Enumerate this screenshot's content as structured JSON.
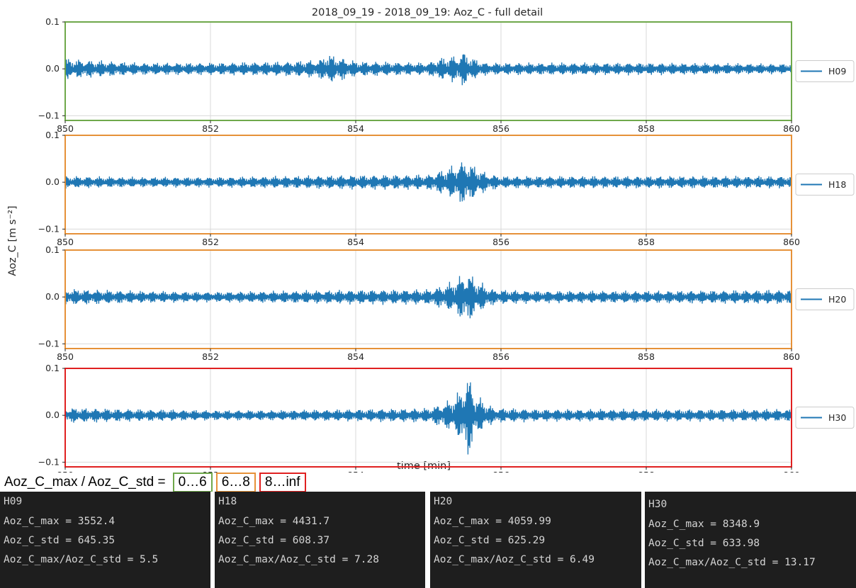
{
  "chart_data": {
    "type": "line",
    "title": "2018_09_19 - 2018_09_19: Aoz_C - full detail",
    "xlabel": "time [min]",
    "ylabel": "Aoz_C [m s⁻²]",
    "xlim": [
      850,
      860
    ],
    "ylim": [
      -0.11,
      0.1
    ],
    "x_ticks": [
      850,
      852,
      854,
      856,
      858,
      860
    ],
    "x_tick_labels": [
      "850",
      "852",
      "854",
      "856",
      "858",
      "860"
    ],
    "y_ticks": [
      -0.1,
      0.0,
      0.1
    ],
    "y_tick_labels": [
      "−0.1",
      "0.0",
      "0.1"
    ],
    "grid": true,
    "legend_placement": "right",
    "line_color": "#1f77b4",
    "panels": [
      {
        "series": [
          {
            "name": "H09",
            "envelope_x": [
              850,
              851,
              852,
              853,
              853.5,
              853.6,
              854,
              855,
              855.1,
              855.4,
              855.5,
              855.6,
              855.8,
              857,
              858,
              860
            ],
            "envelope_y": [
              0.02,
              0.012,
              0.012,
              0.014,
              0.018,
              0.03,
              0.015,
              0.012,
              0.02,
              0.027,
              0.035,
              0.022,
              0.012,
              0.012,
              0.012,
              0.01
            ]
          }
        ],
        "frame_color": "#6fa84b"
      },
      {
        "series": [
          {
            "name": "H18",
            "envelope_x": [
              850,
              851,
              852,
              853,
              854,
              855,
              855.3,
              855.5,
              855.6,
              855.8,
              856,
              857,
              858,
              860
            ],
            "envelope_y": [
              0.012,
              0.01,
              0.01,
              0.012,
              0.014,
              0.015,
              0.03,
              0.045,
              0.035,
              0.018,
              0.012,
              0.012,
              0.012,
              0.012
            ]
          }
        ],
        "frame_color": "#e69138"
      },
      {
        "series": [
          {
            "name": "H20",
            "envelope_x": [
              850,
              851,
              852,
              853,
              854,
              855,
              855.3,
              855.5,
              855.55,
              855.7,
              855.9,
              856.5,
              858,
              860
            ],
            "envelope_y": [
              0.016,
              0.012,
              0.01,
              0.012,
              0.014,
              0.015,
              0.028,
              0.048,
              0.05,
              0.03,
              0.015,
              0.012,
              0.012,
              0.014
            ]
          }
        ],
        "frame_color": "#e69138"
      },
      {
        "series": [
          {
            "name": "H30",
            "envelope_x": [
              850,
              851,
              852,
              853,
              854,
              855,
              855.3,
              855.45,
              855.55,
              855.65,
              855.9,
              856.5,
              858,
              860
            ],
            "envelope_y": [
              0.015,
              0.012,
              0.01,
              0.01,
              0.012,
              0.014,
              0.03,
              0.05,
              0.085,
              0.04,
              0.015,
              0.012,
              0.012,
              0.012
            ]
          }
        ],
        "frame_color": "#e02020"
      }
    ]
  },
  "legend_caption": {
    "label": "Aoz_C_max / Aoz_C_std =",
    "ranges": [
      {
        "text": "0…6",
        "color": "#6fa84b"
      },
      {
        "text": "6…8",
        "color": "#e69138"
      },
      {
        "text": "8…inf",
        "color": "#e02020"
      }
    ]
  },
  "stats": [
    {
      "name": "H09",
      "max": "Aoz_C_max = 3552.4",
      "std": "Aoz_C_std = 645.35",
      "ratio": "Aoz_C_max/Aoz_C_std = 5.5"
    },
    {
      "name": "H18",
      "max": "Aoz_C_max = 4431.7",
      "std": "Aoz_C_std = 608.37",
      "ratio": "Aoz_C_max/Aoz_C_std = 7.28"
    },
    {
      "name": "H20",
      "max": "Aoz_C_max = 4059.99",
      "std": "Aoz_C_std = 625.29",
      "ratio": "Aoz_C_max/Aoz_C_std = 6.49"
    },
    {
      "name": "H30",
      "max": "Aoz_C_max = 8348.9",
      "std": "Aoz_C_std = 633.98",
      "ratio": "Aoz_C_max/Aoz_C_std = 13.17"
    }
  ]
}
